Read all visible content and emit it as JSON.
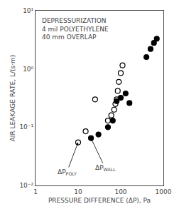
{
  "chart_data": {
    "type": "scatter",
    "title": "DEPRESSURIZATION\n4 mil POLYETHYLENE\n40 mm OVERLAP",
    "xlabel": "PRESSURE DIFFERENCE (ΔP), Pa",
    "ylabel": "AIR LEAKAGE RATE, L/(s·m)",
    "log": true,
    "grid": false,
    "xlim": [
      1,
      1000
    ],
    "ylim": [
      0.01,
      10
    ],
    "xticks": [
      1,
      10,
      100,
      1000
    ],
    "yticks": [
      {
        "value": 0.01,
        "label": "10⁻²"
      },
      {
        "value": 0.1,
        "label": "10⁻¹"
      },
      {
        "value": 1,
        "label": "10⁰"
      },
      {
        "value": 10,
        "label": "10¹"
      }
    ],
    "series": [
      {
        "x": [
          10,
          15,
          25,
          50,
          60,
          70,
          75,
          80,
          85,
          90,
          100,
          110
        ],
        "values": [
          0.055,
          0.085,
          0.3,
          0.13,
          0.16,
          0.2,
          0.25,
          0.3,
          0.42,
          0.6,
          0.85,
          1.15
        ],
        "color": "black",
        "marker": "open circle"
      },
      {
        "x": [
          20,
          30,
          50,
          65,
          80,
          100,
          130,
          160,
          400,
          500,
          600,
          700
        ],
        "values": [
          0.065,
          0.075,
          0.1,
          0.13,
          0.28,
          0.32,
          0.38,
          0.26,
          1.6,
          2.2,
          2.8,
          3.3
        ],
        "color": "black",
        "marker": "filled circle"
      }
    ],
    "annotations": [
      {
        "text": "ΔP",
        "subscript": "POLY",
        "x": 10,
        "y": 0.055
      },
      {
        "text": "ΔP",
        "subscript": "WALL",
        "x": 20,
        "y": 0.065
      }
    ]
  }
}
